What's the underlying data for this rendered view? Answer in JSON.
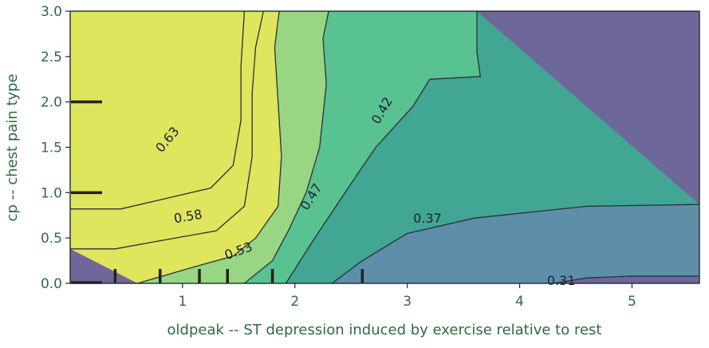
{
  "chart_data": {
    "type": "contour",
    "xlabel": "oldpeak -- ST depression induced by exercise relative to rest",
    "ylabel": "cp -- chest pain type",
    "xlim": [
      0.0,
      5.6
    ],
    "ylim": [
      0.0,
      3.0
    ],
    "x_ticks": [
      {
        "value": 1,
        "label": "1"
      },
      {
        "value": 2,
        "label": "2"
      },
      {
        "value": 3,
        "label": "3"
      },
      {
        "value": 4,
        "label": "4"
      },
      {
        "value": 5,
        "label": "5"
      }
    ],
    "y_ticks": [
      {
        "value": 0.0,
        "label": "0.0"
      },
      {
        "value": 0.5,
        "label": "0.5"
      },
      {
        "value": 1.0,
        "label": "1.0"
      },
      {
        "value": 1.5,
        "label": "1.5"
      },
      {
        "value": 2.0,
        "label": "2.0"
      },
      {
        "value": 2.5,
        "label": "2.5"
      },
      {
        "value": 3.0,
        "label": "3.0"
      }
    ],
    "levels": [
      0.31,
      0.37,
      0.42,
      0.47,
      0.53,
      0.58,
      0.63
    ],
    "level_labels": [
      {
        "text": "0.63",
        "x": 0.87,
        "y": 1.58,
        "angle": -50
      },
      {
        "text": "0.58",
        "x": 1.05,
        "y": 0.73,
        "angle": -10
      },
      {
        "text": "0.53",
        "x": 1.5,
        "y": 0.35,
        "angle": -20
      },
      {
        "text": "0.47",
        "x": 2.15,
        "y": 0.95,
        "angle": -58
      },
      {
        "text": "0.42",
        "x": 2.78,
        "y": 1.9,
        "angle": -60
      },
      {
        "text": "0.37",
        "x": 3.18,
        "y": 0.71,
        "angle": 0
      },
      {
        "text": "0.31",
        "x": 4.37,
        "y": 0.02,
        "angle": 0
      }
    ],
    "region_colors": [
      "#6e6799",
      "#5d8fa8",
      "#41a693",
      "#59c291",
      "#98d683",
      "#dfe55c"
    ],
    "contours": [
      [
        [
          4.3,
          0.0
        ],
        [
          4.6,
          0.06
        ],
        [
          5.0,
          0.08
        ],
        [
          5.6,
          0.08
        ]
      ],
      [
        [
          2.33,
          0.0
        ],
        [
          2.6,
          0.25
        ],
        [
          3.0,
          0.55
        ],
        [
          3.6,
          0.72
        ],
        [
          4.6,
          0.85
        ],
        [
          5.6,
          0.87
        ]
      ],
      [
        [
          1.92,
          0.0
        ],
        [
          2.15,
          0.45
        ],
        [
          2.5,
          1.1
        ],
        [
          2.72,
          1.5
        ],
        [
          3.05,
          1.95
        ],
        [
          3.2,
          2.25
        ],
        [
          3.65,
          2.28
        ],
        [
          3.62,
          2.55
        ],
        [
          3.62,
          3.0
        ]
      ],
      [
        [
          1.55,
          0.0
        ],
        [
          1.8,
          0.25
        ],
        [
          1.95,
          0.6
        ],
        [
          2.1,
          1.0
        ],
        [
          2.22,
          1.5
        ],
        [
          2.28,
          2.2
        ],
        [
          2.25,
          2.7
        ],
        [
          2.3,
          3.0
        ]
      ],
      [
        [
          0.6,
          0.0
        ],
        [
          1.1,
          0.18
        ],
        [
          1.45,
          0.3
        ],
        [
          1.65,
          0.5
        ],
        [
          1.85,
          0.85
        ],
        [
          1.88,
          1.4
        ],
        [
          1.85,
          2.0
        ],
        [
          1.82,
          2.6
        ],
        [
          1.86,
          3.0
        ]
      ],
      [
        [
          0.0,
          0.38
        ],
        [
          0.4,
          0.38
        ],
        [
          0.85,
          0.48
        ],
        [
          1.3,
          0.58
        ],
        [
          1.55,
          0.85
        ],
        [
          1.62,
          1.4
        ],
        [
          1.62,
          2.1
        ],
        [
          1.65,
          2.6
        ],
        [
          1.72,
          3.0
        ]
      ],
      [
        [
          0.0,
          0.82
        ],
        [
          0.45,
          0.82
        ],
        [
          0.8,
          0.92
        ],
        [
          1.25,
          1.05
        ],
        [
          1.45,
          1.3
        ],
        [
          1.52,
          1.8
        ],
        [
          1.52,
          2.4
        ],
        [
          1.55,
          3.0
        ]
      ]
    ],
    "rug_y": [
      0.0,
      1.0,
      2.0
    ],
    "rug_x": [
      0.4,
      0.8,
      1.15,
      1.4,
      1.8,
      2.6
    ],
    "grid": false
  }
}
